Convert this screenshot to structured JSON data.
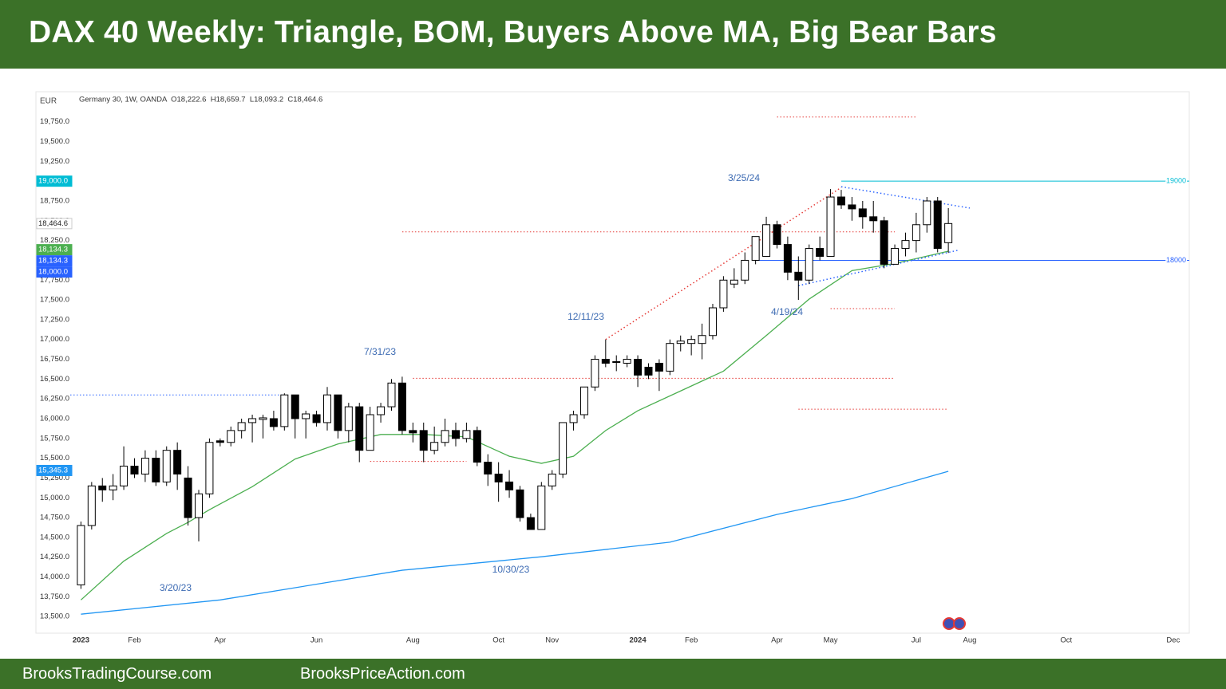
{
  "header": {
    "title": "DAX 40 Weekly: Triangle, BOM, Buyers Above MA, Big Bear Bars"
  },
  "footer": {
    "left": "BrooksTradingCourse.com",
    "right": "BrooksPriceAction.com"
  },
  "chart_data": {
    "type": "candlestick",
    "currency": "EUR",
    "info": "Germany 30, 1W, OANDA  O18,222.6  H18,659.7  L18,093.2  C18,464.6",
    "up_color": "#ffffff",
    "down_color": "#000000",
    "x": [
      0,
      1,
      2,
      3,
      4,
      5,
      6,
      7,
      8,
      9,
      10,
      11,
      12,
      13,
      14,
      15,
      16,
      17,
      18,
      19,
      20,
      21,
      22,
      23,
      24,
      25,
      26,
      27,
      28,
      29,
      30,
      31,
      32,
      33,
      34,
      35,
      36,
      37,
      38,
      39,
      40,
      41,
      42,
      43,
      44,
      45,
      46,
      47,
      48,
      49,
      50,
      51,
      52,
      53,
      54,
      55,
      56,
      57,
      58,
      59,
      60,
      61,
      62,
      63,
      64,
      65,
      66,
      67,
      68,
      69,
      70,
      71,
      72,
      73,
      74,
      75,
      76,
      77,
      78,
      79,
      80,
      81
    ],
    "open": [
      13900,
      14650,
      15150,
      15100,
      15150,
      15400,
      15300,
      15500,
      15200,
      15600,
      15250,
      14750,
      15050,
      15720,
      15700,
      15850,
      15950,
      15990,
      16000,
      15900,
      16300,
      16000,
      16050,
      15950,
      16300,
      15850,
      16150,
      15600,
      16050,
      16150,
      16450,
      15850,
      15850,
      15600,
      15700,
      15850,
      15750,
      15850,
      15450,
      15300,
      15200,
      15100,
      14750,
      14600,
      15150,
      15300,
      15950,
      16050,
      16400,
      16750,
      16720,
      16700,
      16750,
      16650,
      16700,
      16600,
      16950,
      16950,
      16950,
      17050,
      17400,
      17700,
      17750,
      18000,
      18050,
      18450,
      18200,
      17850,
      17750,
      18150,
      18050,
      18800,
      18700,
      18650,
      18550,
      18500,
      17950,
      18150,
      18250,
      18450,
      18750,
      18222.6
    ],
    "high": [
      14700,
      15200,
      15250,
      15300,
      15650,
      15500,
      15600,
      15600,
      15650,
      15700,
      15400,
      15100,
      15750,
      15750,
      15900,
      16000,
      16050,
      16050,
      16100,
      16320,
      16300,
      16100,
      16100,
      16400,
      16300,
      16200,
      16200,
      16150,
      16200,
      16500,
      16530,
      15950,
      15950,
      15900,
      16000,
      15950,
      15950,
      15900,
      15550,
      15450,
      15350,
      15150,
      14800,
      15200,
      15350,
      15950,
      16100,
      16400,
      16800,
      17000,
      16800,
      16800,
      16800,
      16700,
      16750,
      17000,
      17050,
      17050,
      17200,
      17450,
      17800,
      17900,
      18100,
      18300,
      18550,
      18500,
      18300,
      18050,
      18200,
      18300,
      18900,
      18890,
      18800,
      18750,
      18750,
      18550,
      18200,
      18350,
      18600,
      18800,
      18800,
      18659.7
    ],
    "low": [
      13850,
      14600,
      14950,
      14970,
      15100,
      15250,
      15200,
      15150,
      15150,
      15100,
      14650,
      14450,
      15000,
      15650,
      15650,
      15750,
      15700,
      15750,
      15850,
      15850,
      15750,
      15750,
      15900,
      15850,
      15750,
      15700,
      15450,
      15600,
      15950,
      16100,
      15800,
      15700,
      15450,
      15550,
      15650,
      15650,
      15700,
      15400,
      15150,
      14950,
      15000,
      14700,
      14600,
      14600,
      15100,
      15250,
      15850,
      16000,
      16350,
      16650,
      16600,
      16650,
      16400,
      16500,
      16350,
      16550,
      16850,
      16800,
      16750,
      17000,
      17350,
      17650,
      17700,
      17950,
      18050,
      18150,
      17750,
      17500,
      17700,
      18000,
      18050,
      18650,
      18500,
      18400,
      18350,
      17900,
      17950,
      18050,
      18100,
      18350,
      18100,
      18093.2
    ],
    "close": [
      14650,
      15150,
      15100,
      15150,
      15400,
      15300,
      15500,
      15200,
      15600,
      15300,
      14750,
      15050,
      15700,
      15700,
      15850,
      15950,
      16000,
      16010,
      15900,
      16300,
      16000,
      16060,
      15950,
      16300,
      15850,
      16150,
      15600,
      16050,
      16150,
      16450,
      15850,
      15820,
      15600,
      15700,
      15850,
      15750,
      15850,
      15450,
      15300,
      15200,
      15100,
      14750,
      14600,
      15150,
      15300,
      15950,
      16050,
      16400,
      16750,
      16700,
      16710,
      16750,
      16550,
      16550,
      16600,
      16950,
      16980,
      17000,
      17050,
      17400,
      17750,
      17750,
      18000,
      18300,
      18450,
      18200,
      17850,
      17750,
      18150,
      18050,
      18800,
      18700,
      18650,
      18550,
      18500,
      17950,
      18150,
      18250,
      18450,
      18750,
      18150,
      18464.6
    ],
    "xlim": [
      -1,
      103.5
    ],
    "xticks": [
      {
        "value": 0,
        "label": "2023"
      },
      {
        "value": 5,
        "label": "Feb"
      },
      {
        "value": 13,
        "label": "Apr"
      },
      {
        "value": 22,
        "label": "Jun"
      },
      {
        "value": 31,
        "label": "Aug"
      },
      {
        "value": 39,
        "label": "Oct"
      },
      {
        "value": 44,
        "label": "Nov"
      },
      {
        "value": 52,
        "label": "2024"
      },
      {
        "value": 57,
        "label": "Feb"
      },
      {
        "value": 65,
        "label": "Apr"
      },
      {
        "value": 70,
        "label": "May"
      },
      {
        "value": 78,
        "label": "Jul"
      },
      {
        "value": 83,
        "label": "Aug"
      },
      {
        "value": 92,
        "label": "Oct"
      },
      {
        "value": 102,
        "label": "Dec"
      }
    ],
    "ylim": [
      13300,
      20130
    ],
    "yticks": [
      {
        "value": 13500,
        "label": "13,500.0"
      },
      {
        "value": 13750,
        "label": "13,750.0"
      },
      {
        "value": 14000,
        "label": "14,000.0"
      },
      {
        "value": 14250,
        "label": "14,250.0"
      },
      {
        "value": 14500,
        "label": "14,500.0"
      },
      {
        "value": 14750,
        "label": "14,750.0"
      },
      {
        "value": 15000,
        "label": "15,000.0"
      },
      {
        "value": 15250,
        "label": "15,250.0"
      },
      {
        "value": 15500,
        "label": "15,500.0"
      },
      {
        "value": 15750,
        "label": "15,750.0"
      },
      {
        "value": 16000,
        "label": "16,000.0"
      },
      {
        "value": 16250,
        "label": "16,250.0"
      },
      {
        "value": 16500,
        "label": "16,500.0"
      },
      {
        "value": 16750,
        "label": "16,750.0"
      },
      {
        "value": 17000,
        "label": "17,000.0"
      },
      {
        "value": 17250,
        "label": "17,250.0"
      },
      {
        "value": 17500,
        "label": "17,500.0"
      },
      {
        "value": 17750,
        "label": "17,750.0"
      },
      {
        "value": 18000,
        "label": "18,000.0"
      },
      {
        "value": 18250,
        "label": "18,250.0"
      },
      {
        "value": 18500,
        "label": "18,500.0"
      },
      {
        "value": 18750,
        "label": "18,750.0"
      },
      {
        "value": 19000,
        "label": "19,000.0"
      },
      {
        "value": 19250,
        "label": "19,250.0"
      },
      {
        "value": 19500,
        "label": "19,500.0"
      },
      {
        "value": 19750,
        "label": "19,750.0"
      }
    ],
    "price_tags": [
      {
        "value": 19000,
        "label": "19,000.0",
        "color": "#00bcd4",
        "text_color": "#ffffff"
      },
      {
        "value": 18464.6,
        "label": "18,464.6",
        "color": "#ffffff",
        "text_color": "#222222"
      },
      {
        "value": 18134.3,
        "label": "18,134.3",
        "color": "#4caf50",
        "text_color": "#ffffff"
      },
      {
        "value": 18134.3,
        "label": "18,134.3",
        "color": "#2962ff",
        "text_color": "#ffffff"
      },
      {
        "value": 18000,
        "label": "18,000.0",
        "color": "#2962ff",
        "text_color": "#ffffff"
      },
      {
        "value": 15345.3,
        "label": "15,345.3",
        "color": "#2196f3",
        "text_color": "#ffffff"
      }
    ],
    "moving_averages": [
      {
        "color": "#4caf50",
        "x": [
          0,
          4,
          8,
          10,
          12,
          16,
          20,
          24,
          28,
          32,
          36,
          40,
          43,
          46,
          49,
          52,
          56,
          60,
          64,
          68,
          72,
          76,
          81
        ],
        "values": [
          13710,
          14200,
          14550,
          14690,
          14850,
          15140,
          15490,
          15680,
          15800,
          15800,
          15770,
          15525,
          15435,
          15525,
          15850,
          16100,
          16350,
          16600,
          17050,
          17510,
          17870,
          17960,
          18115
        ]
      },
      {
        "color": "#2196f3",
        "x": [
          0,
          13,
          30,
          43,
          55,
          65,
          72,
          81
        ],
        "values": [
          13530,
          13710,
          14085,
          14255,
          14440,
          14790,
          14990,
          15335
        ]
      }
    ],
    "levels": [
      {
        "value": 19000,
        "from": 71,
        "to": 103.5,
        "color": "#00bcd4",
        "style": "solid",
        "label": "19000"
      },
      {
        "value": 18000,
        "from": 63,
        "to": 103.5,
        "color": "#2962ff",
        "style": "solid",
        "label": "18000"
      },
      {
        "value": 19810,
        "from": 65,
        "to": 78,
        "color": "#e53935",
        "style": "dotted"
      },
      {
        "value": 18360,
        "from": 30,
        "to": 76,
        "color": "#e53935",
        "style": "dotted"
      },
      {
        "value": 17390,
        "from": 70,
        "to": 76,
        "color": "#e53935",
        "style": "dotted"
      },
      {
        "value": 16510,
        "from": 31,
        "to": 76,
        "color": "#e53935",
        "style": "dotted"
      },
      {
        "value": 16120,
        "from": 67,
        "to": 81,
        "color": "#e53935",
        "style": "dotted"
      },
      {
        "value": 15460,
        "from": 27,
        "to": 36,
        "color": "#e53935",
        "style": "dotted"
      },
      {
        "value": 16300,
        "from": -1,
        "to": 19,
        "color": "#2962ff",
        "style": "dotted"
      }
    ],
    "trendlines": [
      {
        "x1": 49,
        "y1": 17000,
        "x2": 71,
        "y2": 18920,
        "color": "#e53935"
      },
      {
        "x1": 71,
        "y1": 18930,
        "x2": 83,
        "y2": 18660,
        "color": "#2962ff"
      },
      {
        "x1": 67,
        "y1": 17680,
        "x2": 82,
        "y2": 18130,
        "color": "#2962ff"
      }
    ],
    "annotations": [
      "3/20/23",
      "7/31/23",
      "10/30/23",
      "12/11/23",
      "3/25/24",
      "4/19/24"
    ]
  }
}
